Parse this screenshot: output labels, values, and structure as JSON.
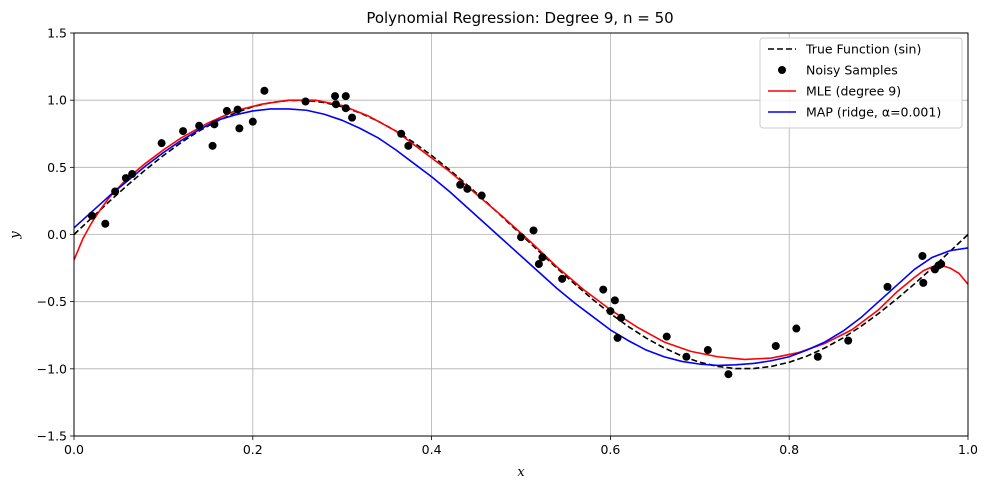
{
  "chart_data": {
    "type": "line",
    "title": "Polynomial Regression: Degree 9, n = 50",
    "xlabel": "x",
    "ylabel": "y",
    "xlim": [
      0,
      1
    ],
    "ylim": [
      -1.5,
      1.5
    ],
    "grid": true,
    "legend_position": "top-right",
    "x_ticks": [
      0.0,
      0.2,
      0.4,
      0.6,
      0.8,
      1.0
    ],
    "x_tick_labels": [
      "0.0",
      "0.2",
      "0.4",
      "0.6",
      "0.8",
      "1.0"
    ],
    "y_ticks": [
      -1.5,
      -1.0,
      -0.5,
      0.0,
      0.5,
      1.0,
      1.5
    ],
    "y_tick_labels": [
      "−1.5",
      "−1.0",
      "−0.5",
      "0.0",
      "0.5",
      "1.0",
      "1.5"
    ],
    "series": [
      {
        "name": "True Function (sin)",
        "style": "dashed",
        "color": "#000000",
        "x": [
          0,
          0.02,
          0.04,
          0.06,
          0.08,
          0.1,
          0.12,
          0.14,
          0.16,
          0.18,
          0.2,
          0.22,
          0.24,
          0.26,
          0.28,
          0.3,
          0.32,
          0.34,
          0.36,
          0.38,
          0.4,
          0.42,
          0.44,
          0.46,
          0.48,
          0.5,
          0.52,
          0.54,
          0.56,
          0.58,
          0.6,
          0.62,
          0.64,
          0.66,
          0.68,
          0.7,
          0.72,
          0.74,
          0.76,
          0.78,
          0.8,
          0.82,
          0.84,
          0.86,
          0.88,
          0.9,
          0.92,
          0.94,
          0.96,
          0.98,
          1.0
        ],
        "y": [
          0.0,
          0.125,
          0.249,
          0.368,
          0.482,
          0.588,
          0.685,
          0.771,
          0.844,
          0.905,
          0.951,
          0.982,
          0.998,
          0.998,
          0.982,
          0.951,
          0.905,
          0.844,
          0.771,
          0.685,
          0.588,
          0.482,
          0.368,
          0.249,
          0.125,
          0.0,
          -0.125,
          -0.249,
          -0.368,
          -0.482,
          -0.588,
          -0.685,
          -0.771,
          -0.844,
          -0.905,
          -0.951,
          -0.982,
          -0.998,
          -0.998,
          -0.982,
          -0.951,
          -0.905,
          -0.844,
          -0.771,
          -0.685,
          -0.588,
          -0.482,
          -0.368,
          -0.249,
          -0.125,
          0.0
        ]
      },
      {
        "name": "MLE (degree 9)",
        "style": "solid",
        "color": "#ff0000",
        "x": [
          0,
          0.01,
          0.02,
          0.03,
          0.04,
          0.05,
          0.06,
          0.08,
          0.1,
          0.12,
          0.15,
          0.18,
          0.21,
          0.24,
          0.27,
          0.3,
          0.33,
          0.36,
          0.39,
          0.42,
          0.45,
          0.48,
          0.51,
          0.54,
          0.57,
          0.6,
          0.63,
          0.66,
          0.69,
          0.72,
          0.75,
          0.78,
          0.81,
          0.84,
          0.87,
          0.9,
          0.92,
          0.94,
          0.95,
          0.96,
          0.97,
          0.98,
          0.99,
          1.0
        ],
        "y": [
          -0.19,
          -0.03,
          0.09,
          0.19,
          0.28,
          0.35,
          0.42,
          0.53,
          0.63,
          0.72,
          0.83,
          0.92,
          0.97,
          1.0,
          1.0,
          0.96,
          0.88,
          0.77,
          0.62,
          0.47,
          0.3,
          0.13,
          -0.05,
          -0.24,
          -0.41,
          -0.56,
          -0.69,
          -0.8,
          -0.87,
          -0.91,
          -0.93,
          -0.92,
          -0.88,
          -0.81,
          -0.71,
          -0.56,
          -0.43,
          -0.32,
          -0.27,
          -0.24,
          -0.23,
          -0.25,
          -0.29,
          -0.37
        ]
      },
      {
        "name": "MAP (ridge, α=0.001)",
        "style": "solid",
        "color": "#0000ff",
        "x": [
          0,
          0.02,
          0.04,
          0.06,
          0.08,
          0.1,
          0.12,
          0.14,
          0.16,
          0.18,
          0.2,
          0.22,
          0.24,
          0.26,
          0.28,
          0.3,
          0.32,
          0.34,
          0.36,
          0.38,
          0.4,
          0.42,
          0.44,
          0.46,
          0.48,
          0.5,
          0.52,
          0.54,
          0.56,
          0.58,
          0.6,
          0.62,
          0.64,
          0.66,
          0.68,
          0.7,
          0.72,
          0.74,
          0.76,
          0.78,
          0.8,
          0.82,
          0.84,
          0.86,
          0.88,
          0.9,
          0.92,
          0.94,
          0.96,
          0.98,
          1.0
        ],
        "y": [
          0.05,
          0.17,
          0.29,
          0.4,
          0.51,
          0.61,
          0.7,
          0.78,
          0.85,
          0.89,
          0.92,
          0.935,
          0.935,
          0.925,
          0.895,
          0.85,
          0.79,
          0.72,
          0.63,
          0.53,
          0.43,
          0.32,
          0.2,
          0.08,
          -0.04,
          -0.16,
          -0.28,
          -0.4,
          -0.51,
          -0.61,
          -0.71,
          -0.79,
          -0.86,
          -0.91,
          -0.945,
          -0.965,
          -0.975,
          -0.97,
          -0.96,
          -0.94,
          -0.91,
          -0.86,
          -0.8,
          -0.72,
          -0.62,
          -0.5,
          -0.38,
          -0.26,
          -0.17,
          -0.12,
          -0.1
        ]
      }
    ],
    "scatter": {
      "name": "Noisy Samples",
      "color": "#000000",
      "points": [
        [
          0.02,
          0.14
        ],
        [
          0.035,
          0.08
        ],
        [
          0.046,
          0.32
        ],
        [
          0.058,
          0.42
        ],
        [
          0.065,
          0.45
        ],
        [
          0.098,
          0.68
        ],
        [
          0.122,
          0.77
        ],
        [
          0.14,
          0.81
        ],
        [
          0.155,
          0.66
        ],
        [
          0.157,
          0.82
        ],
        [
          0.171,
          0.92
        ],
        [
          0.183,
          0.93
        ],
        [
          0.185,
          0.79
        ],
        [
          0.2,
          0.84
        ],
        [
          0.213,
          1.07
        ],
        [
          0.259,
          0.99
        ],
        [
          0.292,
          1.03
        ],
        [
          0.293,
          0.97
        ],
        [
          0.304,
          1.03
        ],
        [
          0.304,
          0.94
        ],
        [
          0.311,
          0.87
        ],
        [
          0.366,
          0.75
        ],
        [
          0.374,
          0.66
        ],
        [
          0.432,
          0.37
        ],
        [
          0.44,
          0.34
        ],
        [
          0.456,
          0.29
        ],
        [
          0.5,
          -0.02
        ],
        [
          0.514,
          0.03
        ],
        [
          0.52,
          -0.22
        ],
        [
          0.524,
          -0.17
        ],
        [
          0.546,
          -0.33
        ],
        [
          0.592,
          -0.41
        ],
        [
          0.6,
          -0.57
        ],
        [
          0.605,
          -0.49
        ],
        [
          0.608,
          -0.77
        ],
        [
          0.612,
          -0.62
        ],
        [
          0.663,
          -0.76
        ],
        [
          0.685,
          -0.91
        ],
        [
          0.709,
          -0.86
        ],
        [
          0.732,
          -1.04
        ],
        [
          0.785,
          -0.83
        ],
        [
          0.808,
          -0.7
        ],
        [
          0.832,
          -0.91
        ],
        [
          0.866,
          -0.79
        ],
        [
          0.91,
          -0.39
        ],
        [
          0.949,
          -0.16
        ],
        [
          0.95,
          -0.36
        ],
        [
          0.963,
          -0.26
        ],
        [
          0.967,
          -0.23
        ],
        [
          0.97,
          -0.22
        ]
      ]
    },
    "legend": [
      {
        "label": "True Function (sin)",
        "kind": "dashed-line",
        "color": "#000000"
      },
      {
        "label": "Noisy Samples",
        "kind": "marker",
        "color": "#000000"
      },
      {
        "label": "MLE (degree 9)",
        "kind": "line",
        "color": "#ff0000"
      },
      {
        "label": "MAP (ridge, α=0.001)",
        "kind": "line",
        "color": "#0000ff"
      }
    ]
  }
}
